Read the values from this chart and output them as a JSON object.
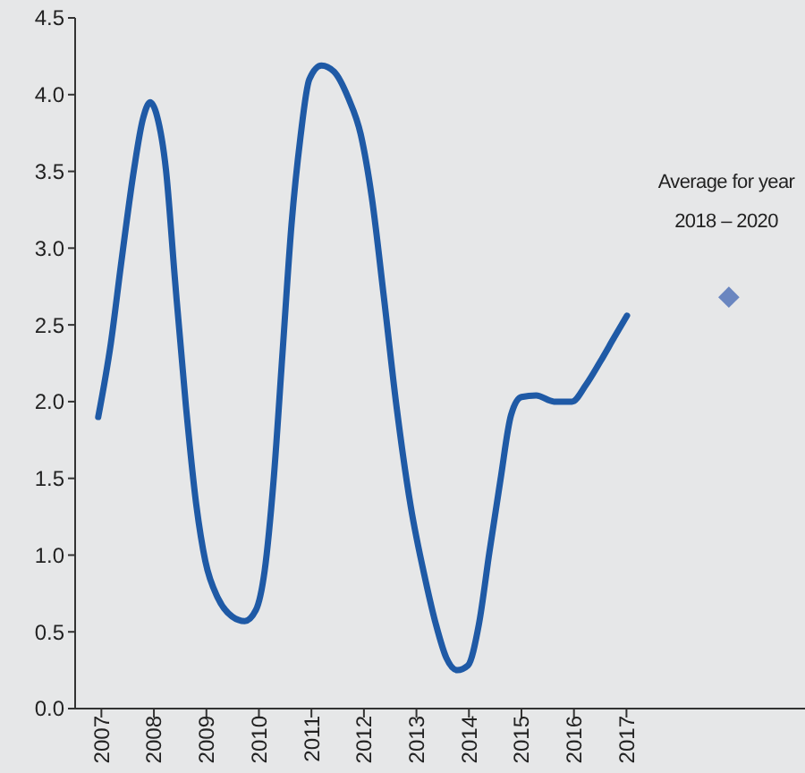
{
  "chart_data": {
    "type": "line",
    "xlim": [
      2006.5,
      2020.4
    ],
    "ylim": [
      0,
      4.5
    ],
    "xticks": [
      2007,
      2008,
      2009,
      2010,
      2011,
      2012,
      2013,
      2014,
      2015,
      2016,
      2017
    ],
    "yticks": [
      {
        "value": 0,
        "label": "0.0"
      },
      {
        "value": 0.5,
        "label": "0.5"
      },
      {
        "value": 1,
        "label": "1.0"
      },
      {
        "value": 1.5,
        "label": "1.5"
      },
      {
        "value": 2,
        "label": "2.0"
      },
      {
        "value": 2.5,
        "label": "2.5"
      },
      {
        "value": 3,
        "label": "3.0"
      },
      {
        "value": 3.5,
        "label": "3.5"
      },
      {
        "value": 4,
        "label": "4.0"
      },
      {
        "value": 4.5,
        "label": "4.5"
      }
    ],
    "grid": false,
    "series": [
      {
        "color": "#1f5aa6",
        "marker": "none",
        "line_style": "solid",
        "x": [
          2006.94,
          2007.18,
          2007.38,
          2007.62,
          2007.79,
          2007.93,
          2008.06,
          2008.23,
          2008.4,
          2008.61,
          2008.81,
          2008.98,
          2009.22,
          2009.49,
          2009.73,
          2009.94,
          2010.11,
          2010.28,
          2010.45,
          2010.62,
          2010.79,
          2010.96,
          2011.19,
          2011.43,
          2011.7,
          2011.94,
          2012.15,
          2012.38,
          2012.62,
          2012.89,
          2013.17,
          2013.37,
          2013.57,
          2013.78,
          2013.98,
          2014.19,
          2014.39,
          2014.6,
          2014.8,
          2015,
          2015.28,
          2015.62,
          2015.96,
          2016.23,
          2016.5,
          2016.77,
          2017.01
        ],
        "values": [
          1.9,
          2.38,
          2.91,
          3.51,
          3.84,
          3.95,
          3.86,
          3.51,
          2.8,
          1.97,
          1.32,
          0.96,
          0.72,
          0.6,
          0.57,
          0.64,
          0.9,
          1.49,
          2.32,
          3.15,
          3.72,
          4.1,
          4.19,
          4.15,
          3.98,
          3.74,
          3.33,
          2.68,
          1.97,
          1.32,
          0.84,
          0.55,
          0.33,
          0.25,
          0.28,
          0.55,
          1.02,
          1.49,
          1.91,
          2.03,
          2.04,
          2,
          2,
          2.11,
          2.26,
          2.42,
          2.56
        ]
      },
      {
        "type": "scatter",
        "color": "#6a86c0",
        "marker": "diamond",
        "x": [
          2018.95
        ],
        "values": [
          2.68
        ]
      }
    ],
    "annotations": [
      "Average for year 2018 – 2020"
    ]
  }
}
